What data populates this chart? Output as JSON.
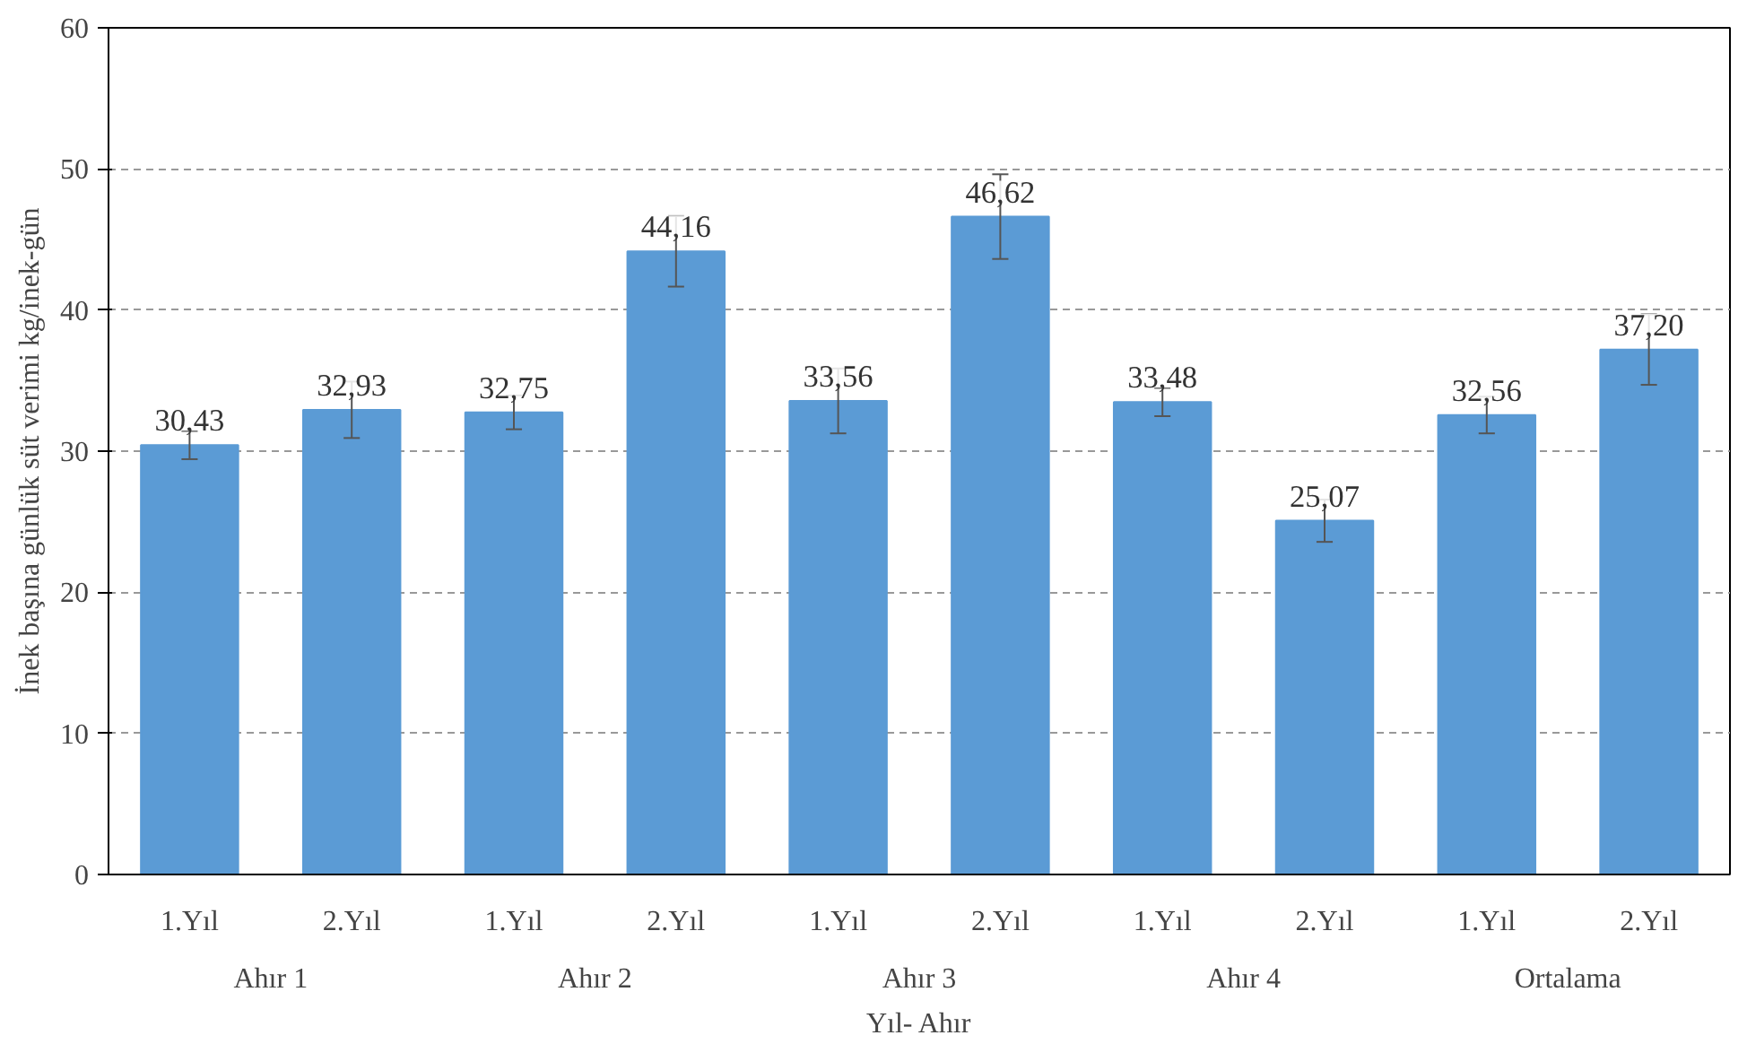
{
  "chart_data": {
    "type": "bar",
    "xlabel": "Yıl- Ahır",
    "ylabel": "İnek başına günlük süt verimi kg/inek-gün",
    "categories": [
      "1.Yıl",
      "2.Yıl",
      "1.Yıl",
      "2.Yıl",
      "1.Yıl",
      "2.Yıl",
      "1.Yıl",
      "2.Yıl",
      "1.Yıl",
      "2.Yıl"
    ],
    "annotations": [
      "Ahır 1",
      "Ahır 2",
      "Ahır 3",
      "Ahır 4",
      "Ortalama"
    ],
    "values": [
      30.43,
      32.93,
      32.75,
      44.16,
      33.56,
      46.62,
      33.48,
      25.07,
      32.56,
      37.2
    ],
    "value_labels": [
      "30,43",
      "32,93",
      "32,75",
      "44,16",
      "33,56",
      "46,62",
      "33,48",
      "25,07",
      "32,56",
      "37,20"
    ],
    "errors": [
      1.0,
      2.0,
      1.2,
      2.5,
      2.3,
      3.0,
      1.0,
      1.5,
      1.3,
      2.5
    ],
    "color": "#5b9bd5",
    "ylim": [
      0,
      60
    ],
    "yticks": [
      0,
      10,
      20,
      30,
      40,
      50,
      60
    ],
    "grid": "y"
  }
}
